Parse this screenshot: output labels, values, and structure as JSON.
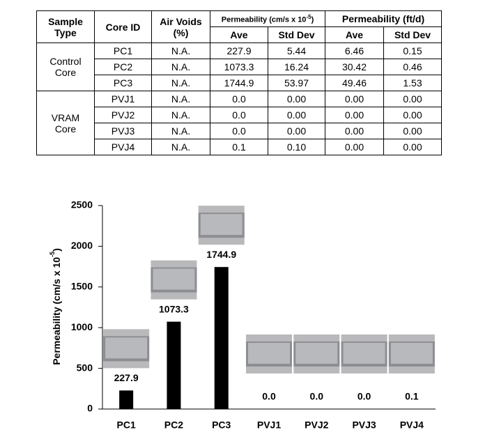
{
  "table": {
    "header": {
      "sample_type": "Sample Type",
      "core_id": "Core ID",
      "air_voids": "Air Voids (%)",
      "perm_cms": [
        "Permeability (cm/s x 10",
        "-5",
        ")"
      ],
      "perm_ftd": "Permeability (ft/d)",
      "sub": [
        "Ave",
        "Std Dev",
        "Ave",
        "Std Dev"
      ]
    },
    "groups": [
      {
        "label": "Control Core",
        "rows": [
          [
            "PC1",
            "N.A.",
            "227.9",
            "5.44",
            "6.46",
            "0.15"
          ],
          [
            "PC2",
            "N.A.",
            "1073.3",
            "16.24",
            "30.42",
            "0.46"
          ],
          [
            "PC3",
            "N.A.",
            "1744.9",
            "53.97",
            "49.46",
            "1.53"
          ]
        ]
      },
      {
        "label": "VRAM Core",
        "rows": [
          [
            "PVJ1",
            "N.A.",
            "0.0",
            "0.00",
            "0.00",
            "0.00"
          ],
          [
            "PVJ2",
            "N.A.",
            "0.0",
            "0.00",
            "0.00",
            "0.00"
          ],
          [
            "PVJ3",
            "N.A.",
            "0.0",
            "0.00",
            "0.00",
            "0.00"
          ],
          [
            "PVJ4",
            "N.A.",
            "0.1",
            "0.10",
            "0.00",
            "0.00"
          ]
        ]
      }
    ]
  },
  "chart_data": {
    "type": "bar",
    "ylabel": [
      "Permeability (cm/s x 10",
      "-5",
      ")"
    ],
    "categories": [
      "PC1",
      "PC2",
      "PC3",
      "PVJ1",
      "PVJ2",
      "PVJ3",
      "PVJ4"
    ],
    "values": [
      227.9,
      1073.3,
      1744.9,
      0.0,
      0.0,
      0.0,
      0.1
    ],
    "value_labels": [
      "227.9",
      "1073.3",
      "1744.9",
      "0.0",
      "0.0",
      "0.0",
      "0.1"
    ],
    "color": "#000000",
    "ylim": [
      0,
      2500
    ],
    "yticks": [
      0,
      500,
      1000,
      1500,
      2000,
      2500
    ]
  }
}
